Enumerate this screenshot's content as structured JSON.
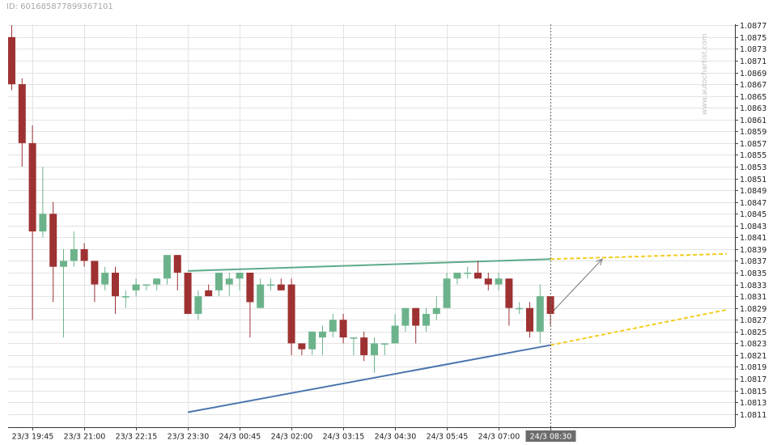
{
  "header": {
    "id_label": "ID: 601685877899367101"
  },
  "watermark": "www.autochartist.com",
  "colors": {
    "bull": "#6cb38c",
    "bear": "#9e3232",
    "resistance": "#5dab8a",
    "support": "#4a76ae",
    "projection": "#f2cd22",
    "grid": "#e3e3e3",
    "now_label_bg": "#6c6c6c"
  },
  "chart_data": {
    "type": "candlestick",
    "y_ticks": [
      "1.0811",
      "1.0813",
      "1.0815",
      "1.0817",
      "1.0819",
      "1.0821",
      "1.0823",
      "1.0825",
      "1.0827",
      "1.0829",
      "1.0831",
      "1.0833",
      "1.0835",
      "1.0837",
      "1.0839",
      "1.0841",
      "1.0843",
      "1.0845",
      "1.0847",
      "1.0849",
      "1.0851",
      "1.0853",
      "1.0855",
      "1.0857",
      "1.0859",
      "1.0861",
      "1.0863",
      "1.0865",
      "1.0867",
      "1.0869",
      "1.0871",
      "1.0873",
      "1.0875",
      "1.0877"
    ],
    "ylim": [
      1.081,
      1.0878
    ],
    "x_ticks": [
      {
        "label": "23/3 19:45",
        "i": 2
      },
      {
        "label": "23/3 21:00",
        "i": 7
      },
      {
        "label": "23/3 22:15",
        "i": 12
      },
      {
        "label": "23/3 23:30",
        "i": 17
      },
      {
        "label": "24/3 00:45",
        "i": 22
      },
      {
        "label": "24/3 02:00",
        "i": 27
      },
      {
        "label": "24/3 03:15",
        "i": 32
      },
      {
        "label": "24/3 04:30",
        "i": 37
      },
      {
        "label": "24/3 05:45",
        "i": 42
      },
      {
        "label": "24/3 07:00",
        "i": 47
      },
      {
        "label": "24/3 08:30",
        "i": 52,
        "highlight": true
      }
    ],
    "candles": [
      {
        "o": 1.0875,
        "h": 1.0877,
        "l": 1.0866,
        "c": 1.0867
      },
      {
        "o": 1.0867,
        "h": 1.0868,
        "l": 1.0853,
        "c": 1.0857
      },
      {
        "o": 1.0857,
        "h": 1.086,
        "l": 1.0827,
        "c": 1.0842
      },
      {
        "o": 1.0842,
        "h": 1.0853,
        "l": 1.0841,
        "c": 1.0845
      },
      {
        "o": 1.0845,
        "h": 1.0847,
        "l": 1.083,
        "c": 1.0836
      },
      {
        "o": 1.0836,
        "h": 1.0839,
        "l": 1.0824,
        "c": 1.0837
      },
      {
        "o": 1.0837,
        "h": 1.0842,
        "l": 1.0836,
        "c": 1.0839
      },
      {
        "o": 1.0839,
        "h": 1.084,
        "l": 1.0836,
        "c": 1.0837
      },
      {
        "o": 1.0837,
        "h": 1.0837,
        "l": 1.083,
        "c": 1.0833
      },
      {
        "o": 1.0833,
        "h": 1.0836,
        "l": 1.0832,
        "c": 1.0835
      },
      {
        "o": 1.0835,
        "h": 1.0836,
        "l": 1.0828,
        "c": 1.0831
      },
      {
        "o": 1.0831,
        "h": 1.0832,
        "l": 1.0829,
        "c": 1.0831
      },
      {
        "o": 1.0832,
        "h": 1.0834,
        "l": 1.0831,
        "c": 1.0833
      },
      {
        "o": 1.0833,
        "h": 1.0833,
        "l": 1.0832,
        "c": 1.0833
      },
      {
        "o": 1.0833,
        "h": 1.0834,
        "l": 1.0832,
        "c": 1.0834
      },
      {
        "o": 1.0834,
        "h": 1.0838,
        "l": 1.0833,
        "c": 1.0838
      },
      {
        "o": 1.0838,
        "h": 1.0838,
        "l": 1.0832,
        "c": 1.0835
      },
      {
        "o": 1.0835,
        "h": 1.0835,
        "l": 1.0828,
        "c": 1.0828
      },
      {
        "o": 1.0828,
        "h": 1.0832,
        "l": 1.0827,
        "c": 1.0831
      },
      {
        "o": 1.0832,
        "h": 1.0833,
        "l": 1.0831,
        "c": 1.0831
      },
      {
        "o": 1.0832,
        "h": 1.0835,
        "l": 1.0831,
        "c": 1.0835
      },
      {
        "o": 1.0833,
        "h": 1.0835,
        "l": 1.0831,
        "c": 1.0834
      },
      {
        "o": 1.0834,
        "h": 1.0835,
        "l": 1.0832,
        "c": 1.0835
      },
      {
        "o": 1.0835,
        "h": 1.0835,
        "l": 1.0824,
        "c": 1.083
      },
      {
        "o": 1.0829,
        "h": 1.0834,
        "l": 1.0829,
        "c": 1.0833
      },
      {
        "o": 1.0833,
        "h": 1.0834,
        "l": 1.0832,
        "c": 1.0833
      },
      {
        "o": 1.0833,
        "h": 1.0834,
        "l": 1.0832,
        "c": 1.0832
      },
      {
        "o": 1.0833,
        "h": 1.0834,
        "l": 1.0821,
        "c": 1.0823
      },
      {
        "o": 1.0823,
        "h": 1.0823,
        "l": 1.0821,
        "c": 1.0822
      },
      {
        "o": 1.0822,
        "h": 1.0825,
        "l": 1.0821,
        "c": 1.0825
      },
      {
        "o": 1.0824,
        "h": 1.0826,
        "l": 1.0821,
        "c": 1.0825
      },
      {
        "o": 1.0825,
        "h": 1.0828,
        "l": 1.0824,
        "c": 1.0827
      },
      {
        "o": 1.0827,
        "h": 1.0828,
        "l": 1.0823,
        "c": 1.0824
      },
      {
        "o": 1.0824,
        "h": 1.0824,
        "l": 1.0821,
        "c": 1.0824
      },
      {
        "o": 1.0824,
        "h": 1.0825,
        "l": 1.082,
        "c": 1.0821
      },
      {
        "o": 1.0821,
        "h": 1.0824,
        "l": 1.0818,
        "c": 1.0823
      },
      {
        "o": 1.0823,
        "h": 1.0823,
        "l": 1.0821,
        "c": 1.0823
      },
      {
        "o": 1.0823,
        "h": 1.0828,
        "l": 1.0823,
        "c": 1.0826
      },
      {
        "o": 1.0826,
        "h": 1.0829,
        "l": 1.0825,
        "c": 1.0829
      },
      {
        "o": 1.0829,
        "h": 1.0829,
        "l": 1.0823,
        "c": 1.0826
      },
      {
        "o": 1.0826,
        "h": 1.0829,
        "l": 1.0825,
        "c": 1.0828
      },
      {
        "o": 1.0828,
        "h": 1.0831,
        "l": 1.0827,
        "c": 1.0829
      },
      {
        "o": 1.0829,
        "h": 1.0835,
        "l": 1.0829,
        "c": 1.0834
      },
      {
        "o": 1.0834,
        "h": 1.0835,
        "l": 1.0833,
        "c": 1.0835
      },
      {
        "o": 1.0835,
        "h": 1.0836,
        "l": 1.0834,
        "c": 1.0835
      },
      {
        "o": 1.0835,
        "h": 1.0837,
        "l": 1.0834,
        "c": 1.0834
      },
      {
        "o": 1.0834,
        "h": 1.0835,
        "l": 1.0832,
        "c": 1.0833
      },
      {
        "o": 1.0833,
        "h": 1.0835,
        "l": 1.0832,
        "c": 1.0834
      },
      {
        "o": 1.0834,
        "h": 1.0834,
        "l": 1.0826,
        "c": 1.0829
      },
      {
        "o": 1.0829,
        "h": 1.083,
        "l": 1.0828,
        "c": 1.0829
      },
      {
        "o": 1.0829,
        "h": 1.083,
        "l": 1.0824,
        "c": 1.0825
      },
      {
        "o": 1.0825,
        "h": 1.0833,
        "l": 1.0823,
        "c": 1.0831
      },
      {
        "o": 1.0831,
        "h": 1.0831,
        "l": 1.0826,
        "c": 1.0828
      }
    ],
    "resistance_line": {
      "from": {
        "i": 17,
        "y": 1.08353
      },
      "to": {
        "i": 52,
        "y": 1.08373
      }
    },
    "support_line": {
      "from": {
        "i": 17,
        "y": 1.08113
      },
      "to": {
        "i": 52,
        "y": 1.08227
      }
    },
    "projection_upper": {
      "from": {
        "i": 52,
        "y": 1.08373
      },
      "to": {
        "i": 69,
        "y": 1.08382
      }
    },
    "projection_lower": {
      "from": {
        "i": 52,
        "y": 1.08227
      },
      "to": {
        "i": 69,
        "y": 1.08287
      }
    },
    "target_arrow": {
      "from": {
        "i": 52,
        "y": 1.0828
      },
      "to": {
        "i": 57,
        "y": 1.08373
      }
    },
    "now_index": 52
  }
}
